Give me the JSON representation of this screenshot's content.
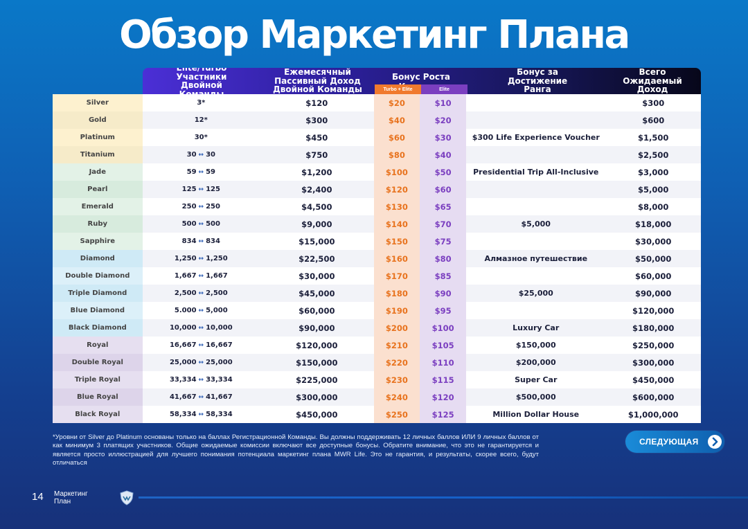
{
  "title": "Обзор Маркетинг Плана",
  "headers": {
    "team": "Elite/Turbo Участники Двойной Команды",
    "income": "Ежемесячный Пассивный Доход Двойной Команды",
    "bonus": "Бонус Роста Команды",
    "bonus_turbo": "Turbo + Elite",
    "bonus_elite": "Elite",
    "rank_bonus": "Бонус за Достижение Ранга",
    "total": "Всего Ожидаемый Доход"
  },
  "rows": [
    {
      "rank": "Silver",
      "team_a": "3*",
      "team_b": "",
      "income": "$120",
      "turbo": "$20",
      "elite": "$10",
      "rank_bonus": "",
      "total": "$300",
      "color": "#fdf1cf"
    },
    {
      "rank": "Gold",
      "team_a": "12*",
      "team_b": "",
      "income": "$300",
      "turbo": "$40",
      "elite": "$20",
      "rank_bonus": "",
      "total": "$600",
      "color": "#f6ebc9"
    },
    {
      "rank": "Platinum",
      "team_a": "30*",
      "team_b": "",
      "income": "$450",
      "turbo": "$60",
      "elite": "$30",
      "rank_bonus": "$300 Life Experience Voucher",
      "total": "$1,500",
      "color": "#fdf1cf"
    },
    {
      "rank": "Titanium",
      "team_a": "30",
      "team_b": "30",
      "income": "$750",
      "turbo": "$80",
      "elite": "$40",
      "rank_bonus": "",
      "total": "$2,500",
      "color": "#f6ebc9"
    },
    {
      "rank": "Jade",
      "team_a": "59",
      "team_b": "59",
      "income": "$1,200",
      "turbo": "$100",
      "elite": "$50",
      "rank_bonus": "Presidential Trip All-Inclusive",
      "total": "$3,000",
      "color": "#e3f2e7"
    },
    {
      "rank": "Pearl",
      "team_a": "125",
      "team_b": "125",
      "income": "$2,400",
      "turbo": "$120",
      "elite": "$60",
      "rank_bonus": "",
      "total": "$5,000",
      "color": "#d7ebdd"
    },
    {
      "rank": "Emerald",
      "team_a": "250",
      "team_b": "250",
      "income": "$4,500",
      "turbo": "$130",
      "elite": "$65",
      "rank_bonus": "",
      "total": "$8,000",
      "color": "#e3f2e7"
    },
    {
      "rank": "Ruby",
      "team_a": "500",
      "team_b": "500",
      "income": "$9,000",
      "turbo": "$140",
      "elite": "$70",
      "rank_bonus": "$5,000",
      "total": "$18,000",
      "color": "#d7ebdd"
    },
    {
      "rank": "Sapphire",
      "team_a": "834",
      "team_b": "834",
      "income": "$15,000",
      "turbo": "$150",
      "elite": "$75",
      "rank_bonus": "",
      "total": "$30,000",
      "color": "#e3f2e7"
    },
    {
      "rank": "Diamond",
      "team_a": "1,250",
      "team_b": "1,250",
      "income": "$22,500",
      "turbo": "$160",
      "elite": "$80",
      "rank_bonus": "Алмазное путешествие",
      "total": "$50,000",
      "color": "#cfeaf6"
    },
    {
      "rank": "Double Diamond",
      "team_a": "1,667",
      "team_b": "1,667",
      "income": "$30,000",
      "turbo": "$170",
      "elite": "$85",
      "rank_bonus": "",
      "total": "$60,000",
      "color": "#dcf0f9"
    },
    {
      "rank": "Triple Diamond",
      "team_a": "2,500",
      "team_b": "2,500",
      "income": "$45,000",
      "turbo": "$180",
      "elite": "$90",
      "rank_bonus": "$25,000",
      "total": "$90,000",
      "color": "#cfeaf6"
    },
    {
      "rank": "Blue Diamond",
      "team_a": "5.000",
      "team_b": "5,000",
      "income": "$60,000",
      "turbo": "$190",
      "elite": "$95",
      "rank_bonus": "",
      "total": "$120,000",
      "color": "#dcf0f9"
    },
    {
      "rank": "Black Diamond",
      "team_a": "10,000",
      "team_b": "10,000",
      "income": "$90,000",
      "turbo": "$200",
      "elite": "$100",
      "rank_bonus": "Luxury Car",
      "total": "$180,000",
      "color": "#cfeaf6"
    },
    {
      "rank": "Royal",
      "team_a": "16,667",
      "team_b": "16,667",
      "income": "$120,000",
      "turbo": "$210",
      "elite": "$105",
      "rank_bonus": "$150,000",
      "total": "$250,000",
      "color": "#e6dff0"
    },
    {
      "rank": "Double Royal",
      "team_a": "25,000",
      "team_b": "25,000",
      "income": "$150,000",
      "turbo": "$220",
      "elite": "$110",
      "rank_bonus": "$200,000",
      "total": "$300,000",
      "color": "#ddd4ea"
    },
    {
      "rank": "Triple Royal",
      "team_a": "33,334",
      "team_b": "33,334",
      "income": "$225,000",
      "turbo": "$230",
      "elite": "$115",
      "rank_bonus": "Super Car",
      "total": "$450,000",
      "color": "#e6dff0"
    },
    {
      "rank": "Blue Royal",
      "team_a": "41,667",
      "team_b": "41,667",
      "income": "$300,000",
      "turbo": "$240",
      "elite": "$120",
      "rank_bonus": "$500,000",
      "total": "$600,000",
      "color": "#ddd4ea"
    },
    {
      "rank": "Black Royal",
      "team_a": "58,334",
      "team_b": "58,334",
      "income": "$450,000",
      "turbo": "$250",
      "elite": "$125",
      "rank_bonus": "Million Dollar House",
      "total": "$1,000,000",
      "color": "#e6dff0"
    }
  ],
  "arrow_glyph": "↔",
  "footnote": "*Уровни от Silver до Platinum основаны только на баллах Регистрационной Команды. Вы должны поддерживать 12 личных баллов ИЛИ 9 личных баллов от как минимум 3 платящих участников. Общие ожидаемые комиссии включают все доступные бонусы. Обратите внимание, что это не гарантируется и является просто иллюстрацией для лучшего понимания потенциала маркетинг плана MWR Life. Это не гарантия, и результаты, скорее всего, будут отличаться",
  "next_button": "СЛЕДУЮЩАЯ",
  "page_number": "14",
  "page_label": "Маркетинг План"
}
